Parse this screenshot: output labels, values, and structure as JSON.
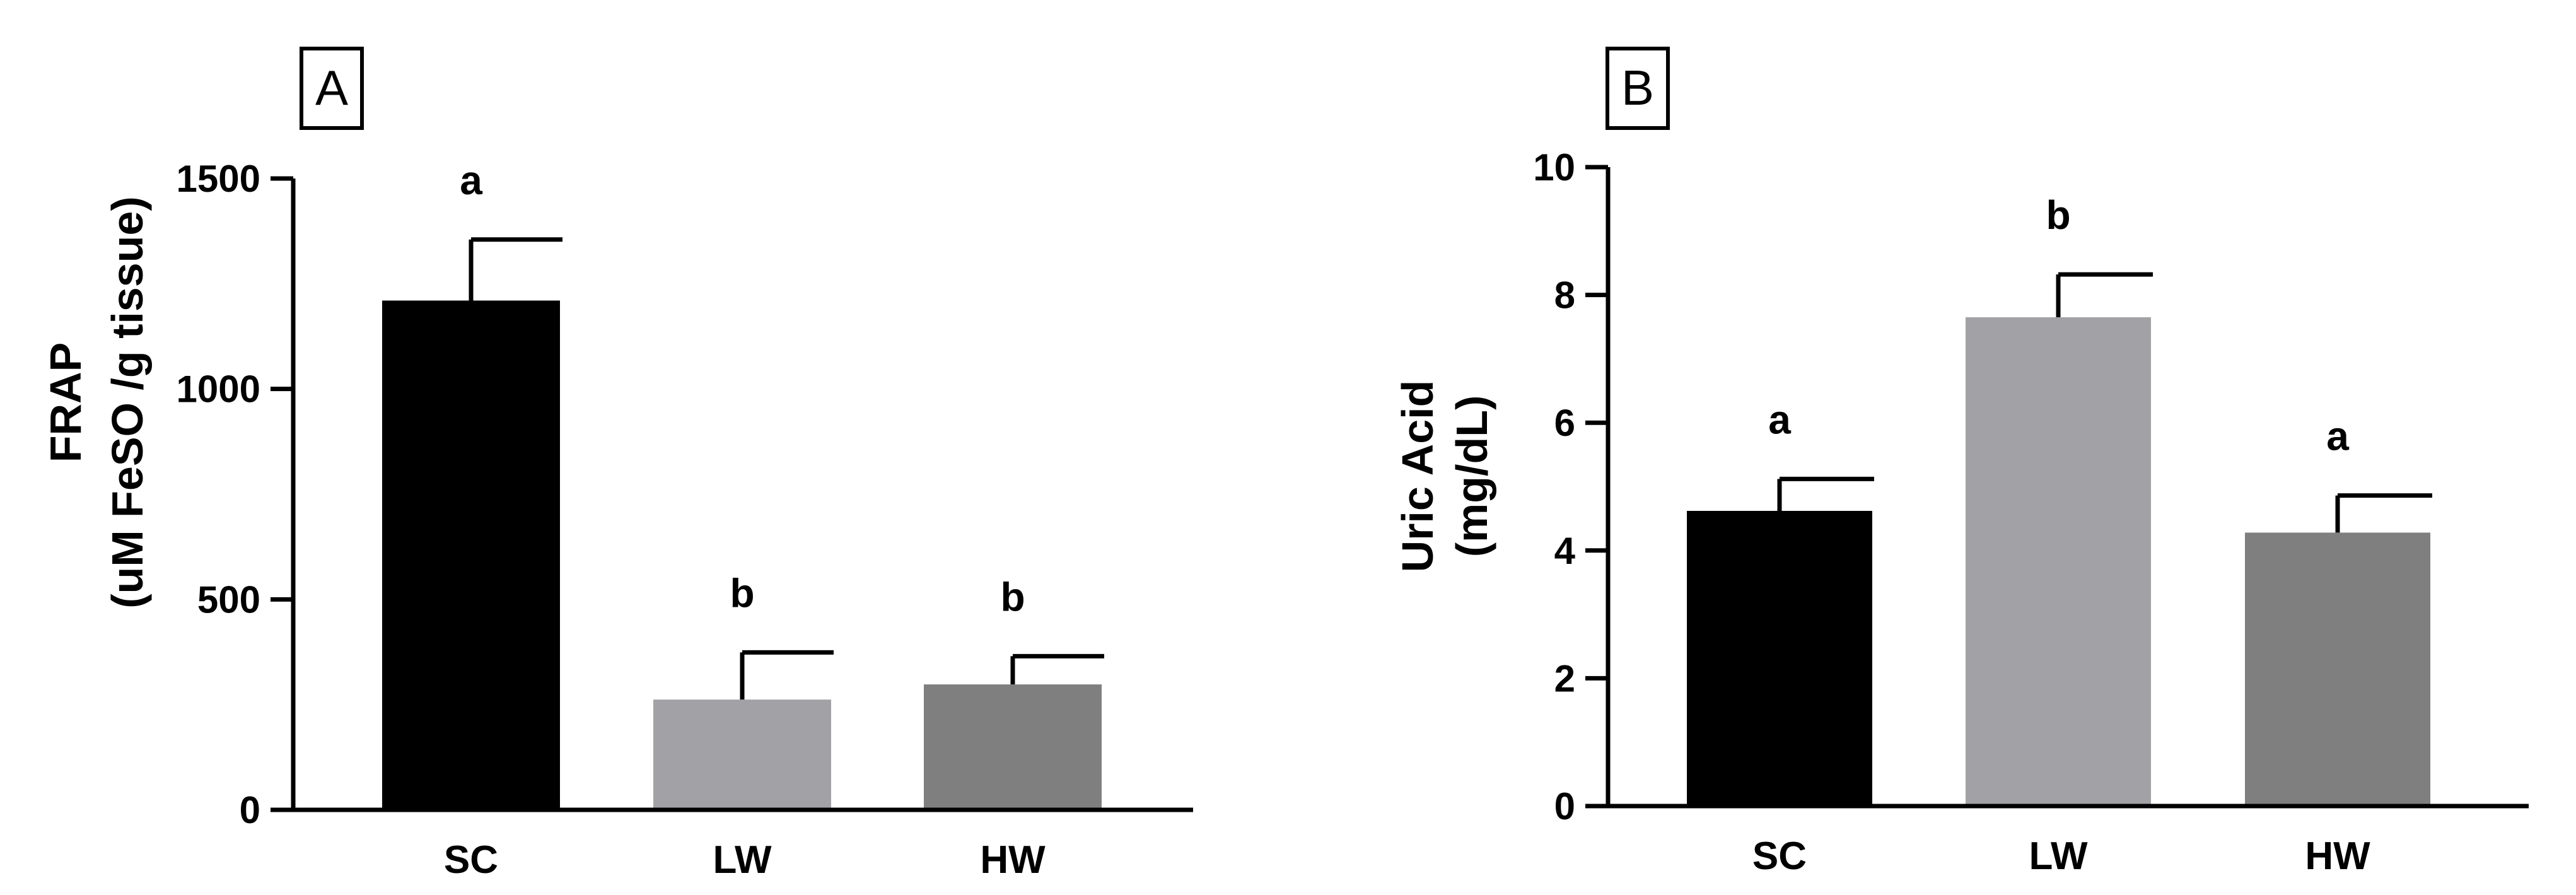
{
  "chart_data": [
    {
      "type": "bar",
      "panel_label": "A",
      "categories": [
        "SC",
        "LW",
        "HW"
      ],
      "values": [
        1210,
        262,
        298
      ],
      "errors": [
        145,
        112,
        67
      ],
      "significance": [
        "a",
        "b",
        "b"
      ],
      "colors": [
        "#000000",
        "#a2a2a6",
        "#7f7f7f"
      ],
      "ylabel_line1": "FRAP",
      "ylabel_line2": "(uM FeSO  /g tissue)",
      "ylim": [
        0,
        1500
      ],
      "yticks": [
        "0",
        "500",
        "1000",
        "1500"
      ],
      "grid": false
    },
    {
      "type": "bar",
      "panel_label": "B",
      "categories": [
        "SC",
        "LW",
        "HW"
      ],
      "values": [
        4.62,
        7.65,
        4.28
      ],
      "errors": [
        0.5,
        0.67,
        0.58
      ],
      "significance": [
        "a",
        "b",
        "a"
      ],
      "colors": [
        "#000000",
        "#a2a2a6",
        "#7f7f7f"
      ],
      "ylabel_line1": "Uric Acid",
      "ylabel_line2": "(mg/dL)",
      "ylim": [
        0,
        10
      ],
      "yticks": [
        "0",
        "2",
        "4",
        "6",
        "8",
        "10"
      ],
      "grid": false
    }
  ]
}
